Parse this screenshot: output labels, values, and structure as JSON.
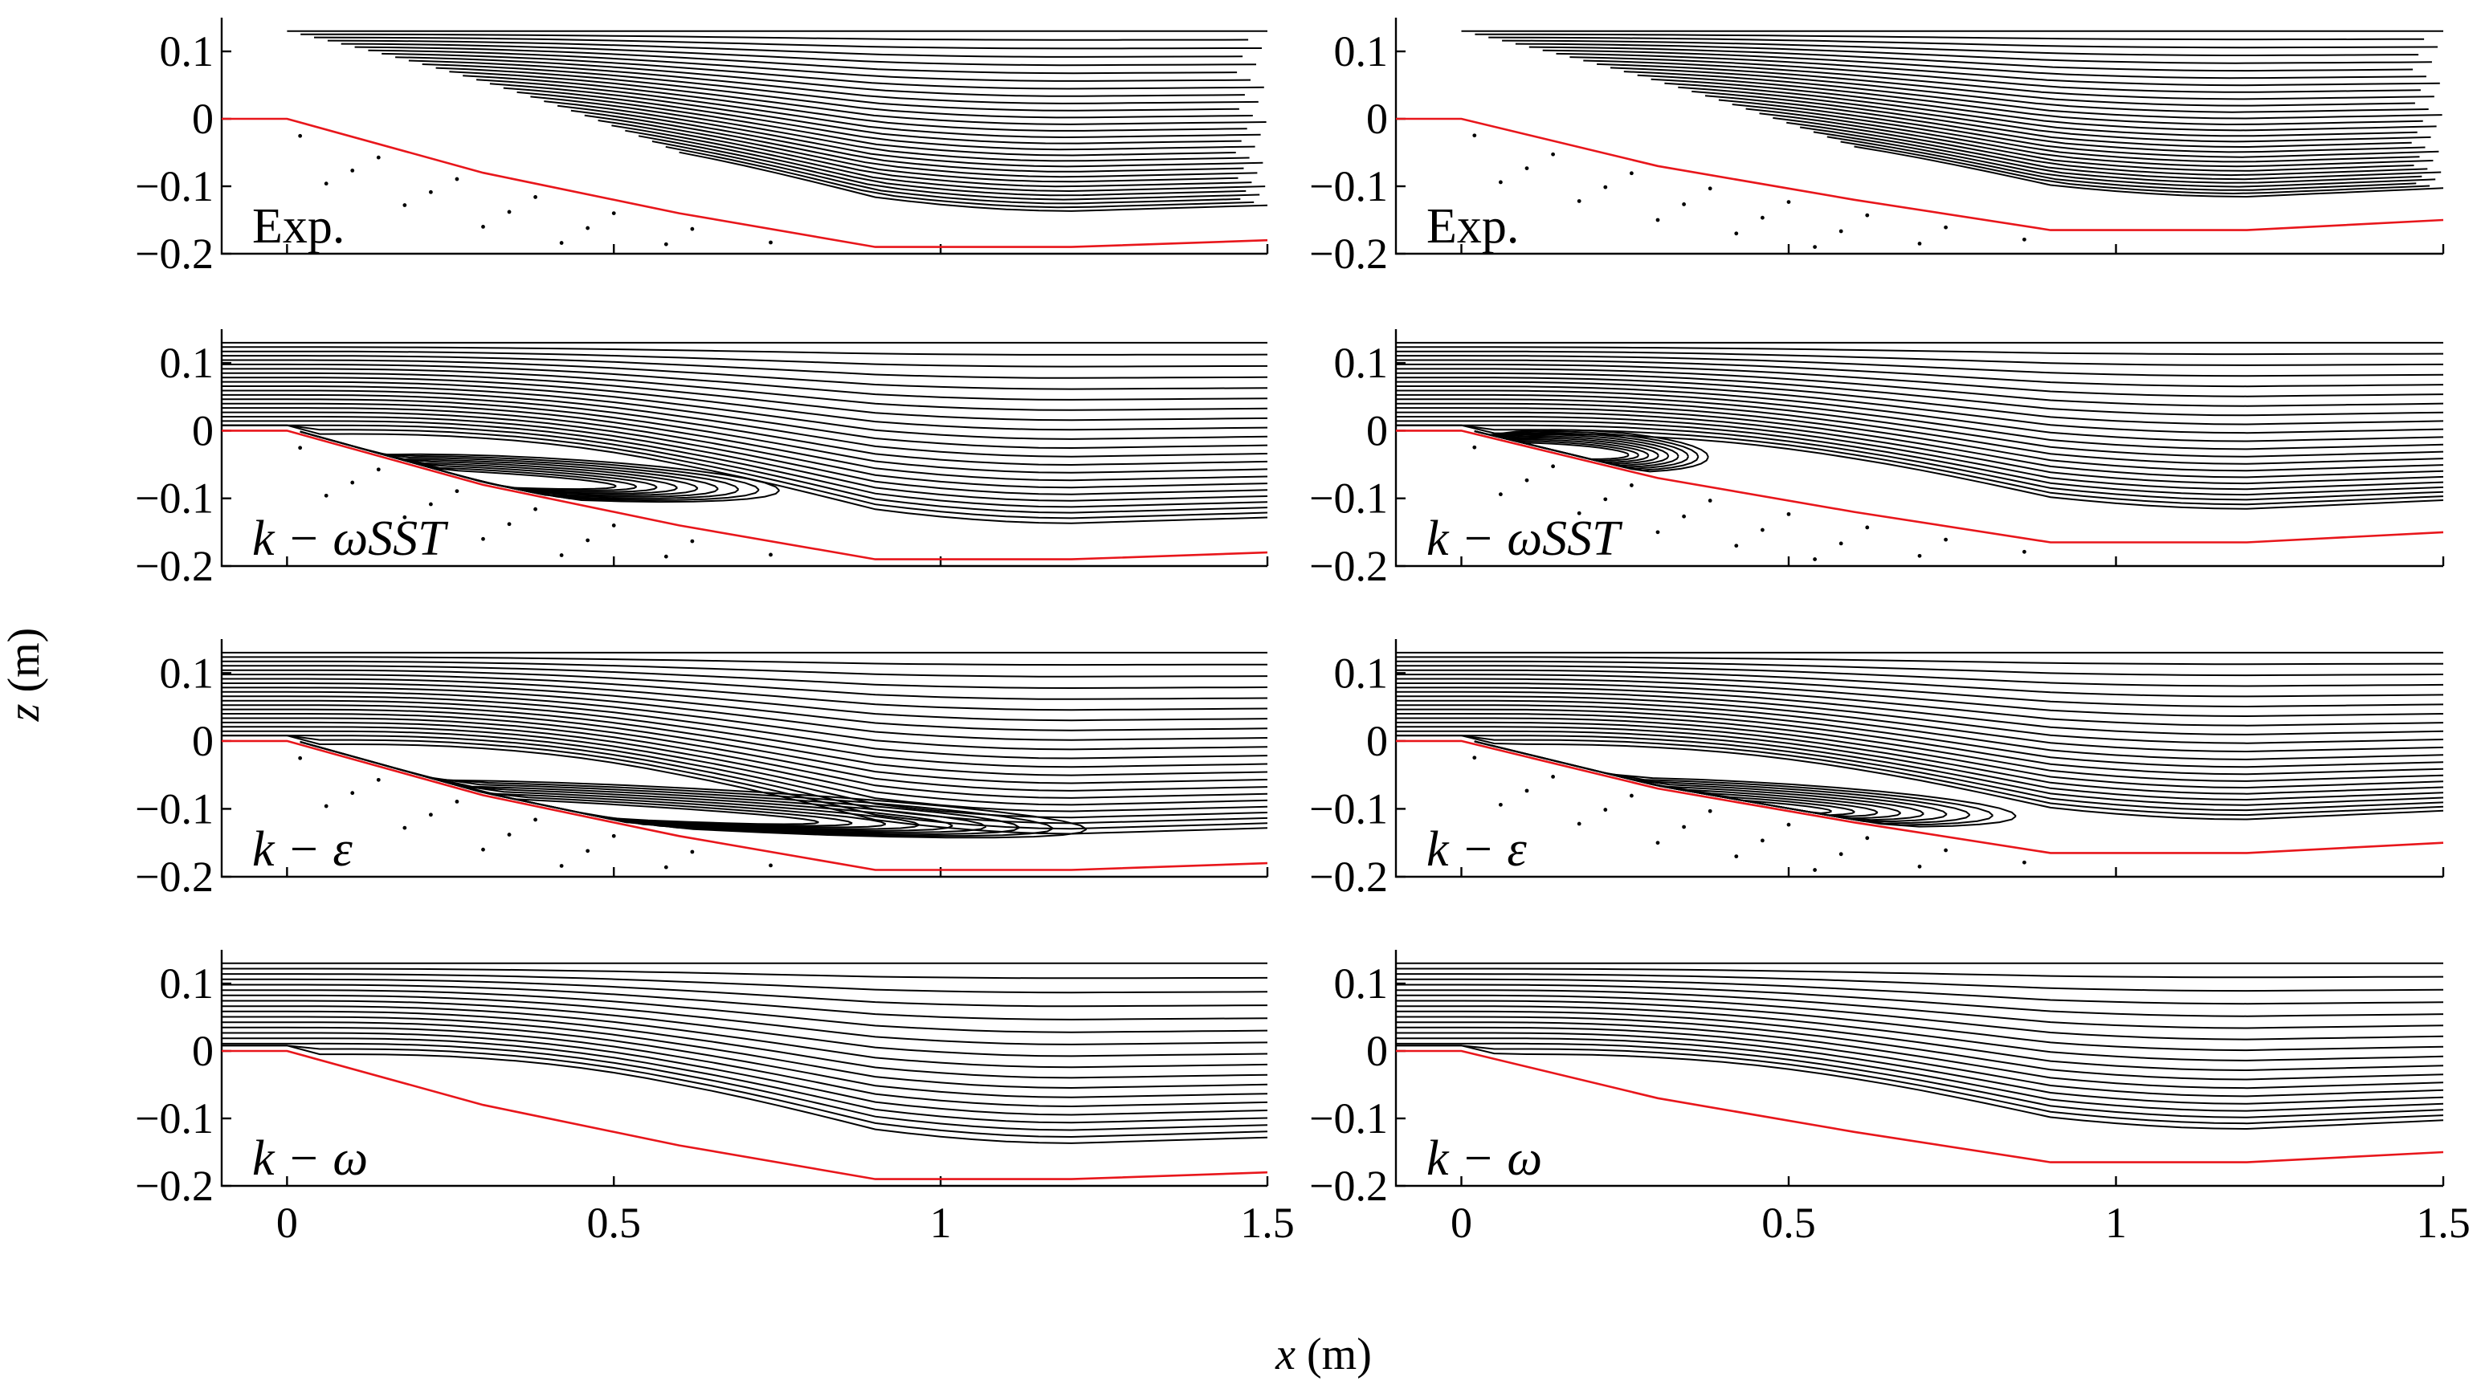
{
  "chart_data": {
    "type": "streamline-panels",
    "xlabel_var": "x",
    "xlabel_unit": "(m)",
    "ylabel_var": "z",
    "ylabel_unit": "(m)",
    "xlim": [
      -0.1,
      1.5
    ],
    "ylim": [
      -0.2,
      0.15
    ],
    "x_ticks": [
      0,
      0.5,
      1,
      1.5
    ],
    "x_tick_labels": [
      "0",
      "0.5",
      "1",
      "1.5"
    ],
    "y_ticks": [
      0.1,
      0,
      -0.1,
      -0.2
    ],
    "y_tick_labels": [
      "0.1",
      "0",
      "−0.1",
      "−0.2"
    ],
    "columns": [
      {
        "name": "left",
        "bed_profile": [
          [
            -0.1,
            0.0
          ],
          [
            0.0,
            0.0
          ],
          [
            0.3,
            -0.08
          ],
          [
            0.6,
            -0.14
          ],
          [
            0.9,
            -0.19
          ],
          [
            1.2,
            -0.19
          ],
          [
            1.5,
            -0.18
          ]
        ]
      },
      {
        "name": "right",
        "bed_profile": [
          [
            -0.1,
            0.0
          ],
          [
            0.0,
            0.0
          ],
          [
            0.3,
            -0.07
          ],
          [
            0.6,
            -0.12
          ],
          [
            0.9,
            -0.165
          ],
          [
            1.2,
            -0.165
          ],
          [
            1.5,
            -0.15
          ]
        ]
      }
    ],
    "rows": [
      {
        "label": "Exp.",
        "math": false,
        "recirculation": null
      },
      {
        "label": "k − ωSST",
        "math": true,
        "recirculation": {
          "left": {
            "x_end": 0.8,
            "core_x": 0.5,
            "core_z": -0.07
          },
          "right": {
            "x_end": 0.4,
            "core_x": 0.25,
            "core_z": -0.03
          }
        }
      },
      {
        "label": "k − ε",
        "math": true,
        "recirculation": {
          "left": {
            "x_end": 1.3,
            "core_x": 0.9,
            "core_z": -0.1
          },
          "right": {
            "x_end": 0.9,
            "core_x": 0.6,
            "core_z": -0.09
          }
        }
      },
      {
        "label": "k − ω",
        "math": true,
        "recirculation": null
      }
    ]
  }
}
